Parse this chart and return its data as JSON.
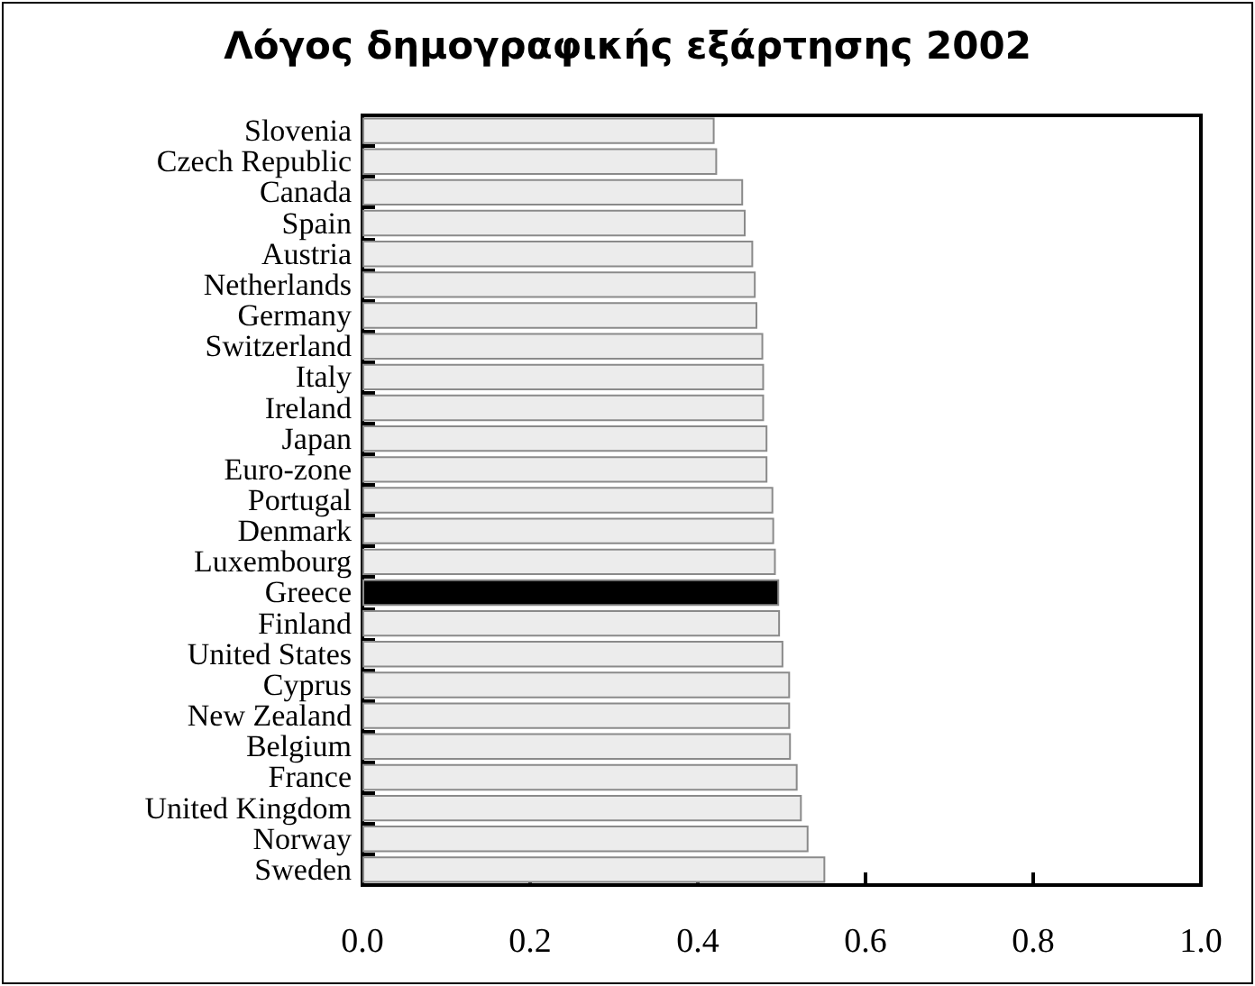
{
  "chart_data": {
    "type": "bar",
    "orientation": "horizontal",
    "title": "Λόγος δημογραφικής εξάρτησης 2002",
    "categories": [
      "Slovenia",
      "Czech Republic",
      "Canada",
      "Spain",
      "Austria",
      "Netherlands",
      "Germany",
      "Switzerland",
      "Italy",
      "Ireland",
      "Japan",
      "Euro-zone",
      "Portugal",
      "Denmark",
      "Luxembourg",
      "Greece",
      "Finland",
      "United States",
      "Cyprus",
      "New Zealand",
      "Belgium",
      "France",
      "United Kingdom",
      "Norway",
      "Sweden"
    ],
    "values": [
      0.42,
      0.423,
      0.454,
      0.457,
      0.466,
      0.469,
      0.471,
      0.478,
      0.479,
      0.479,
      0.483,
      0.483,
      0.49,
      0.491,
      0.493,
      0.497,
      0.498,
      0.502,
      0.51,
      0.51,
      0.511,
      0.519,
      0.524,
      0.532,
      0.552
    ],
    "colors": [
      "#ececec",
      "#ececec",
      "#ececec",
      "#ececec",
      "#ececec",
      "#ececec",
      "#ececec",
      "#ececec",
      "#ececec",
      "#ececec",
      "#ececec",
      "#ececec",
      "#ececec",
      "#ececec",
      "#ececec",
      "#000000",
      "#ececec",
      "#ececec",
      "#ececec",
      "#ececec",
      "#ececec",
      "#ececec",
      "#ececec",
      "#ececec",
      "#ececec"
    ],
    "xlim": [
      0,
      1
    ],
    "xticks": [
      {
        "value": 0,
        "label": "0.0"
      },
      {
        "value": 0.2,
        "label": "0.2"
      },
      {
        "value": 0.4,
        "label": "0.4"
      },
      {
        "value": 0.6,
        "label": "0.6"
      },
      {
        "value": 0.8,
        "label": "0.8"
      },
      {
        "value": 1,
        "label": "1.0"
      }
    ],
    "grid": false
  }
}
